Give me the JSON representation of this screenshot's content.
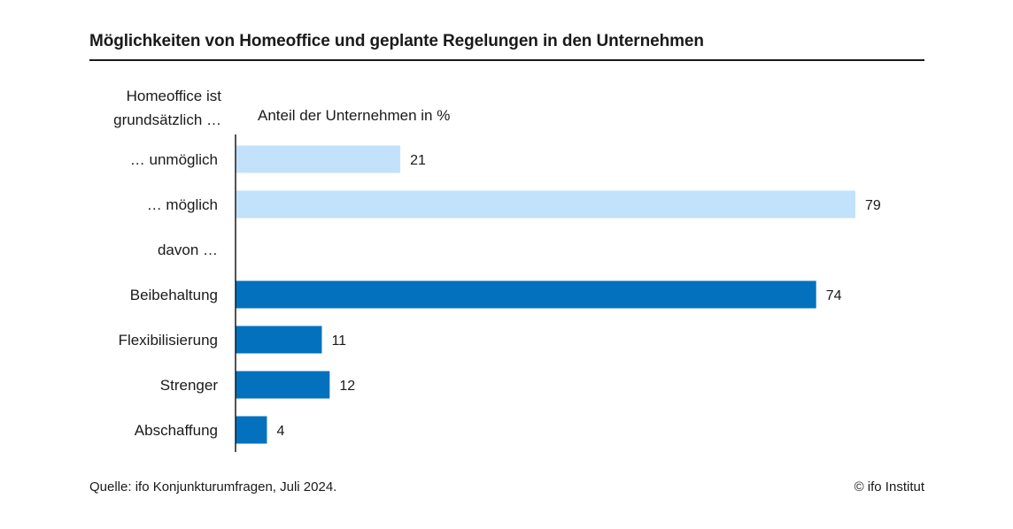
{
  "colors": {
    "light": "#c2e2fb",
    "dark": "#0471bf",
    "text": "#1a1a1a"
  },
  "chart_data": {
    "type": "bar",
    "orientation": "horizontal",
    "title": "Möglichkeiten von Homeoffice und geplante Regelungen in den Unternehmen",
    "category_header": [
      "Homeoffice ist",
      "grundsätzlich …"
    ],
    "xlabel": "Anteil der Unternehmen in %",
    "xlim": [
      0,
      79
    ],
    "grid": false,
    "legend": "none",
    "categories": [
      "… unmöglich",
      "… möglich",
      "davon …",
      "Beibehaltung",
      "Flexibilisierung",
      "Strenger",
      "Abschaffung"
    ],
    "values": [
      21,
      79,
      null,
      74,
      11,
      12,
      4
    ],
    "bar_colors": [
      "light",
      "light",
      null,
      "dark",
      "dark",
      "dark",
      "dark"
    ]
  },
  "footer": {
    "source": "Quelle: ifo Konjunkturumfragen, Juli 2024.",
    "copyright": "© ifo Institut"
  }
}
